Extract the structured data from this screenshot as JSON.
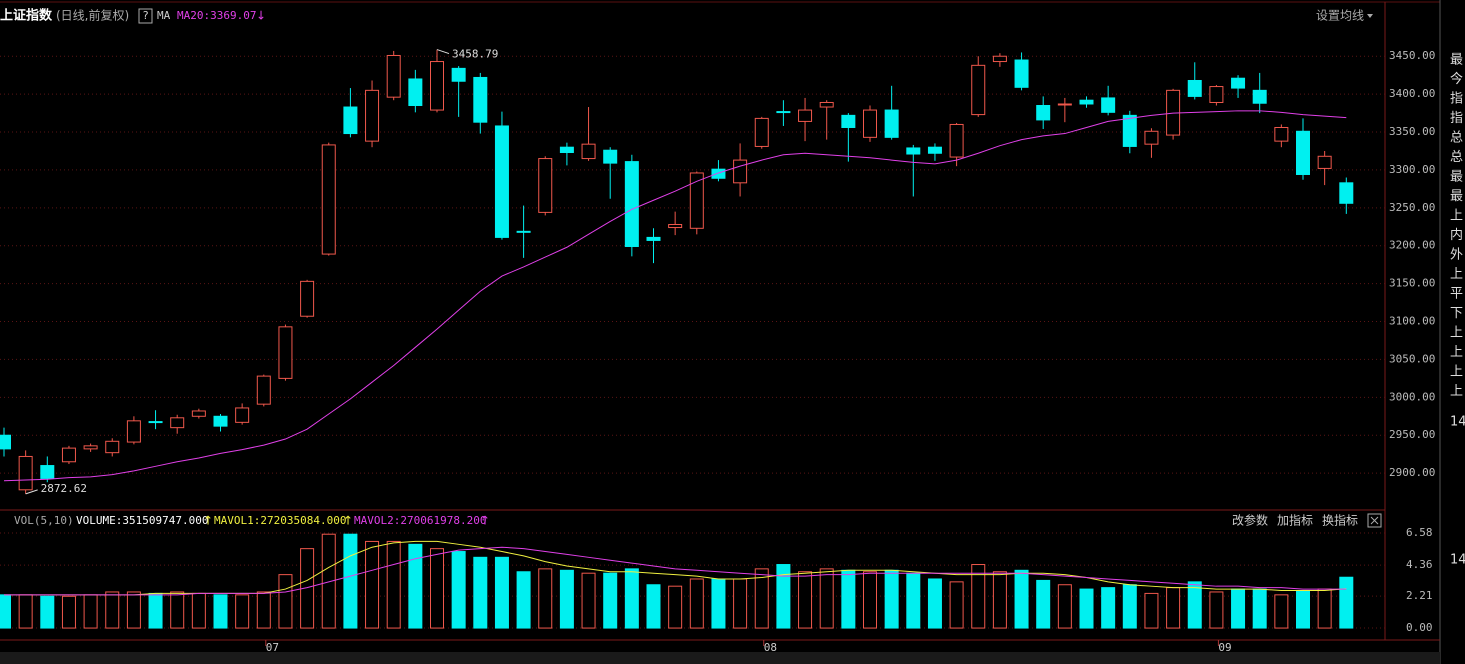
{
  "chart_data": [
    {
      "type": "candlestick",
      "title": "上证指数",
      "subtitle": "(日线,前复权)",
      "help": "?",
      "settings": "设置均线",
      "categories": [
        null,
        null,
        null,
        null,
        null,
        null,
        null,
        null,
        null,
        null,
        null,
        null,
        "07",
        null,
        null,
        null,
        null,
        null,
        null,
        null,
        null,
        null,
        null,
        null,
        null,
        null,
        null,
        null,
        null,
        null,
        null,
        null,
        null,
        null,
        null,
        "08",
        null,
        null,
        null,
        null,
        null,
        null,
        null,
        null,
        null,
        null,
        null,
        null,
        null,
        null,
        null,
        null,
        null,
        null,
        null,
        null,
        "09",
        null,
        null,
        null,
        null,
        null,
        null
      ],
      "open": [
        2950,
        2878,
        2910,
        2915,
        2932,
        2927,
        2941,
        2968,
        2960,
        2975,
        2975,
        2967,
        2991,
        3025,
        3107,
        3189,
        3383,
        3338,
        3396,
        3420,
        3379,
        3434,
        3422,
        3358,
        3219,
        3244,
        3330,
        3315,
        3326,
        3311,
        3211,
        3224,
        3223,
        3301,
        3283,
        3331,
        3377,
        3364,
        3383,
        3372,
        3343,
        3379,
        3329,
        3330,
        3317,
        3373,
        3443,
        3445,
        3385,
        3386,
        3392,
        3395,
        3372,
        3334,
        3346,
        3418,
        3389,
        3421,
        3405,
        3338,
        3351,
        3302,
        3283
      ],
      "high": [
        2960,
        2930,
        2922,
        2936,
        2939,
        2946,
        2975,
        2983,
        2977,
        2985,
        2978,
        2992,
        3030,
        3096,
        3155,
        3336,
        3408,
        3418,
        3457,
        3432,
        3458.79,
        3437,
        3428,
        3377,
        3253,
        3318,
        3336,
        3383,
        3330,
        3320,
        3223,
        3245,
        3298,
        3313,
        3335,
        3370,
        3392,
        3395,
        3392,
        3375,
        3385,
        3411,
        3333,
        3335,
        3362,
        3450,
        3454,
        3455,
        3397,
        3395,
        3397,
        3411,
        3378,
        3355,
        3407,
        3442,
        3412,
        3425,
        3428,
        3360,
        3368,
        3325,
        3290
      ],
      "low": [
        2922,
        2872.62,
        2888,
        2912,
        2928,
        2922,
        2938,
        2958,
        2952,
        2972,
        2955,
        2964,
        2988,
        3022,
        3105,
        3187,
        3343,
        3330,
        3392,
        3376,
        3376,
        3370,
        3348,
        3208,
        3184,
        3240,
        3306,
        3312,
        3262,
        3186,
        3177,
        3214,
        3215,
        3285,
        3265,
        3328,
        3358,
        3338,
        3340,
        3311,
        3337,
        3340,
        3265,
        3312,
        3305,
        3370,
        3436,
        3405,
        3354,
        3363,
        3382,
        3372,
        3322,
        3316,
        3340,
        3393,
        3385,
        3395,
        3375,
        3330,
        3287,
        3280,
        3242
      ],
      "close": [
        2932,
        2922,
        2893,
        2933,
        2936,
        2942,
        2969,
        2967,
        2973,
        2982,
        2962,
        2986,
        3028,
        3093,
        3153,
        3333,
        3348,
        3405,
        3451,
        3385,
        3443,
        3417,
        3363,
        3211,
        3218,
        3315,
        3323,
        3334,
        3309,
        3199,
        3207,
        3228,
        3296,
        3289,
        3313,
        3368,
        3376,
        3379,
        3389,
        3356,
        3379,
        3343,
        3321,
        3322,
        3360,
        3438,
        3450,
        3409,
        3366,
        3387,
        3387,
        3376,
        3331,
        3351,
        3405,
        3397,
        3410,
        3408,
        3388,
        3356,
        3294,
        3318,
        3256
      ],
      "up_color": "#f0584c",
      "down_color": "#00f0f0",
      "ylim": [
        2854,
        3511
      ],
      "yticks": [
        {
          "value": 2900,
          "label": "2900.00"
        },
        {
          "value": 2950,
          "label": "2950.00"
        },
        {
          "value": 3000,
          "label": "3000.00"
        },
        {
          "value": 3050,
          "label": "3050.00"
        },
        {
          "value": 3100,
          "label": "3100.00"
        },
        {
          "value": 3150,
          "label": "3150.00"
        },
        {
          "value": 3200,
          "label": "3200.00"
        },
        {
          "value": 3250,
          "label": "3250.00"
        },
        {
          "value": 3300,
          "label": "3300.00"
        },
        {
          "value": 3350,
          "label": "3350.00"
        },
        {
          "value": 3400,
          "label": "3400.00"
        },
        {
          "value": 3450,
          "label": "3450.00"
        }
      ],
      "grid": true,
      "ma": {
        "name": "MA",
        "label": "MA20:3369.07",
        "arrow": "↓",
        "color": "#e040e8",
        "values": [
          2890,
          2891,
          2892,
          2894,
          2895,
          2898,
          2903,
          2909,
          2915,
          2920,
          2926,
          2931,
          2937,
          2945,
          2958,
          2978,
          2998,
          3020,
          3042,
          3066,
          3090,
          3115,
          3140,
          3160,
          3172,
          3185,
          3198,
          3215,
          3232,
          3248,
          3260,
          3272,
          3285,
          3296,
          3305,
          3313,
          3320,
          3322,
          3320,
          3318,
          3316,
          3313,
          3310,
          3308,
          3313,
          3322,
          3332,
          3340,
          3345,
          3348,
          3356,
          3364,
          3368,
          3372,
          3375,
          3376,
          3377,
          3378,
          3378,
          3376,
          3373,
          3371,
          3369.07
        ]
      }
    },
    {
      "type": "volume",
      "title": "VOL(5,10)",
      "volume_label": "VOLUME:351509747.000",
      "volume_arrow": "↑",
      "buttons": [
        "改参数",
        "加指标",
        "换指标"
      ],
      "values": [
        2.3,
        2.3,
        2.2,
        2.2,
        2.3,
        2.5,
        2.5,
        2.4,
        2.5,
        2.4,
        2.3,
        2.3,
        2.5,
        3.7,
        5.5,
        6.5,
        6.5,
        6.0,
        6.0,
        5.8,
        5.5,
        5.3,
        4.9,
        4.9,
        3.9,
        4.1,
        4.0,
        3.8,
        3.8,
        4.1,
        3.0,
        2.9,
        3.4,
        3.4,
        3.4,
        4.1,
        4.4,
        3.9,
        4.1,
        4.0,
        3.9,
        4.0,
        3.8,
        3.4,
        3.2,
        4.4,
        3.9,
        4.0,
        3.3,
        3.0,
        2.7,
        2.8,
        3.0,
        2.4,
        2.8,
        3.2,
        2.5,
        2.7,
        2.7,
        2.3,
        2.6,
        2.7,
        3.52
      ],
      "ylim": [
        -0.55,
        6.93
      ],
      "yticks": [
        {
          "value": 0,
          "label": "0.00"
        },
        2.21,
        4.36,
        6.58
      ],
      "series": [
        {
          "name": "MAVOL1:272035084.000",
          "arrow": "↑",
          "color": "#f0f040",
          "values": [
            2.3,
            2.3,
            2.3,
            2.3,
            2.3,
            2.3,
            2.3,
            2.4,
            2.4,
            2.4,
            2.4,
            2.4,
            2.4,
            2.7,
            3.3,
            4.2,
            5.0,
            5.6,
            5.9,
            6.0,
            6.0,
            5.8,
            5.6,
            5.3,
            5.0,
            4.6,
            4.3,
            4.1,
            3.9,
            3.9,
            3.8,
            3.7,
            3.6,
            3.4,
            3.4,
            3.5,
            3.7,
            3.8,
            3.9,
            4.0,
            4.0,
            4.0,
            3.9,
            3.8,
            3.7,
            3.7,
            3.7,
            3.8,
            3.8,
            3.7,
            3.5,
            3.2,
            3.0,
            2.9,
            2.8,
            2.8,
            2.7,
            2.7,
            2.7,
            2.6,
            2.6,
            2.6,
            2.72
          ]
        },
        {
          "name": "MAVOL2:270061978.200",
          "arrow": "↑",
          "color": "#e040e8",
          "values": [
            2.3,
            2.3,
            2.3,
            2.3,
            2.3,
            2.3,
            2.3,
            2.3,
            2.3,
            2.4,
            2.4,
            2.4,
            2.4,
            2.5,
            2.8,
            3.2,
            3.6,
            4.0,
            4.4,
            4.8,
            5.1,
            5.4,
            5.5,
            5.6,
            5.5,
            5.3,
            5.1,
            4.9,
            4.7,
            4.5,
            4.3,
            4.1,
            4.0,
            3.9,
            3.8,
            3.7,
            3.6,
            3.6,
            3.7,
            3.7,
            3.8,
            3.8,
            3.8,
            3.8,
            3.8,
            3.8,
            3.8,
            3.8,
            3.7,
            3.6,
            3.5,
            3.4,
            3.3,
            3.2,
            3.1,
            3.0,
            2.9,
            2.9,
            2.8,
            2.8,
            2.7,
            2.7,
            2.7
          ]
        }
      ]
    }
  ],
  "sidebar": [
    "最",
    "今",
    "指",
    "指",
    "总",
    "总",
    "最",
    "最",
    "上",
    "内",
    "外",
    "上",
    "平",
    "下",
    "上",
    "上",
    "上",
    "上",
    "14",
    "14"
  ]
}
